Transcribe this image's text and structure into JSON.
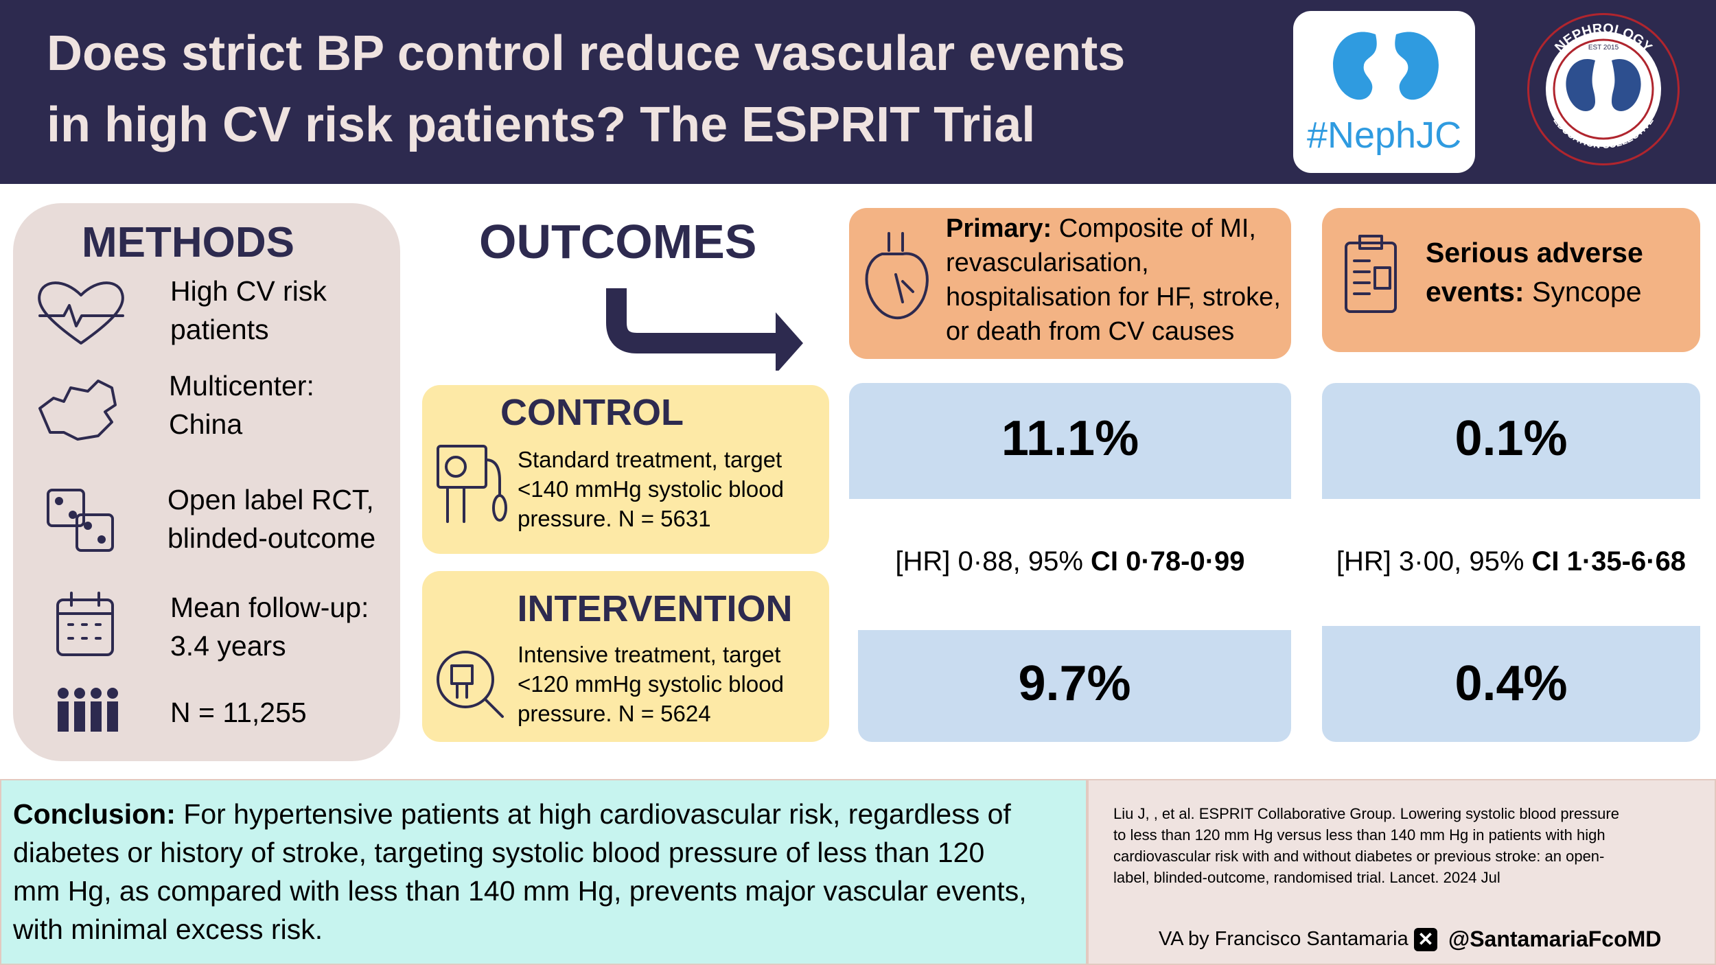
{
  "header": {
    "title_lines": [
      "Does strict BP control reduce vascular events",
      "in high CV risk patients? The ESPRIT Trial"
    ],
    "nephjc": "#NephJC",
    "logo": {
      "top": "NEPHROLOGY",
      "bottom": "EDUCATION COLLECTIVE",
      "est": "EST 2015"
    }
  },
  "methods": {
    "title": "METHODS",
    "items": [
      {
        "lines": [
          "High CV risk",
          "patients"
        ]
      },
      {
        "lines": [
          "Multicenter:",
          "China"
        ]
      },
      {
        "lines": [
          "Open label RCT,",
          "blinded-outcome"
        ]
      },
      {
        "lines": [
          "Mean follow-up:",
          "3.4 years"
        ]
      },
      {
        "lines": [
          "N = 11,255"
        ]
      }
    ]
  },
  "outcomes": {
    "title": "OUTCOMES"
  },
  "arms": {
    "control": {
      "title": "CONTROL",
      "lines": [
        "Standard treatment, target",
        "<140 mmHg systolic blood",
        "pressure. N = 5631"
      ]
    },
    "intervention": {
      "title": "INTERVENTION",
      "lines": [
        "Intensive treatment, target",
        "<120 mmHg systolic blood",
        "pressure. N = 5624"
      ]
    }
  },
  "primary": {
    "label": "Primary:",
    "lines": [
      "Composite of MI,",
      "revascularisation,",
      "hospitalisation for HF, stroke,",
      "or death from CV causes"
    ],
    "control": "11.1%",
    "hr": "[HR] 0·88, 95% ",
    "ci": "CI 0·78-0·99",
    "intervention": "9.7%"
  },
  "serious": {
    "label_lines": [
      "Serious adverse",
      "events:"
    ],
    "text": "Syncope",
    "control": "0.1%",
    "hr": "[HR] 3·00, 95% ",
    "ci": "CI 1·35-6·68",
    "intervention": "0.4%"
  },
  "conclusion": {
    "label": "Conclusion:",
    "lines": [
      "For hypertensive patients at high cardiovascular risk, regardless of",
      "diabetes or history of stroke, targeting systolic blood pressure of less than 120",
      "mm Hg, as compared with less than 140 mm Hg, prevents major vascular events,",
      "with minimal excess risk."
    ]
  },
  "citation": {
    "lines": [
      "Liu J, , et al. ESPRIT Collaborative Group. Lowering systolic blood pressure",
      "to less than 120 mm Hg versus less than 140 mm Hg in patients with high",
      "cardiovascular risk with and without diabetes or previous stroke: an open-",
      "label, blinded-outcome, randomised trial. Lancet. 2024 Jul"
    ]
  },
  "credit": {
    "author": "VA by Francisco Santamaria",
    "handle": "@SantamariaFcoMD"
  }
}
